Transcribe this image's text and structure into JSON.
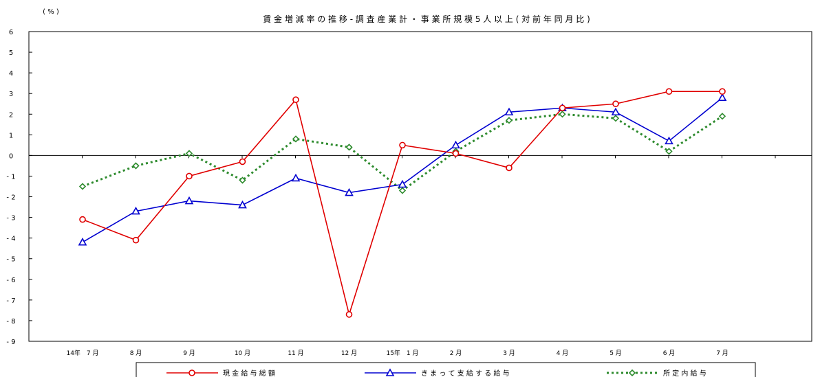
{
  "chart_data": {
    "type": "line",
    "title": "賃 金 増 減 率 の 推 移 - 調 査 産 業 計 ・ 事 業 所 規 模 5 人 以 上 ( 対 前 年 同 月 比 )",
    "ylabel": "( % )",
    "xlabel": "",
    "ylim": [
      -9,
      6
    ],
    "yticks": [
      "6",
      "5",
      "4",
      "3",
      "2",
      "1",
      "0",
      "- 1",
      "- 2",
      "- 3",
      "- 4",
      "- 5",
      "- 6",
      "- 7",
      "- 8",
      "- 9"
    ],
    "categories": [
      "14年　7 月",
      "8 月",
      "9 月",
      "10 月",
      "11 月",
      "12 月",
      "15年　1 月",
      "2 月",
      "3 月",
      "4 月",
      "5 月",
      "6 月",
      "7 月"
    ],
    "legend_position": "bottom",
    "grid": false,
    "series": [
      {
        "name": "現 金 給 与 総 額",
        "color": "#e00000",
        "marker": "circle",
        "style": "solid",
        "values": [
          -3.1,
          -4.1,
          -1.0,
          -0.3,
          2.7,
          -7.7,
          0.5,
          0.1,
          -0.6,
          2.3,
          2.5,
          3.1,
          3.1
        ]
      },
      {
        "name": "き ま っ て 支 給 す る 給 与",
        "color": "#0000d0",
        "marker": "triangle",
        "style": "solid",
        "values": [
          -4.2,
          -2.7,
          -2.2,
          -2.4,
          -1.1,
          -1.8,
          -1.4,
          0.5,
          2.1,
          2.3,
          2.1,
          0.7,
          2.8
        ]
      },
      {
        "name": "所 定 内 給 与",
        "color": "#2e8b2e",
        "marker": "diamond",
        "style": "dotted",
        "values": [
          -1.5,
          -0.5,
          0.1,
          -1.2,
          0.8,
          0.4,
          -1.7,
          0.2,
          1.7,
          2.0,
          1.8,
          0.2,
          1.9
        ]
      }
    ]
  }
}
